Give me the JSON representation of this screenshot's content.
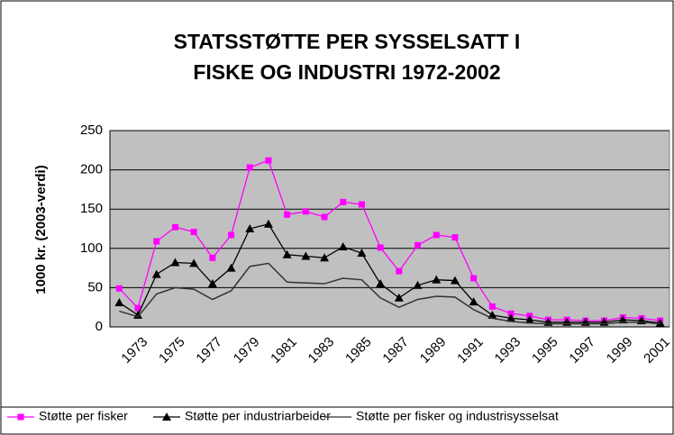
{
  "chart_data": {
    "type": "line",
    "title": [
      "STATSSTØTTE PER SYSSELSATT I",
      "FISKE OG INDUSTRI 1972-2002"
    ],
    "y_label": "1000 kr. (2003-verdi)",
    "categories": [
      null,
      "1973",
      null,
      "1975",
      null,
      "1977",
      null,
      "1979",
      null,
      "1981",
      null,
      "1983",
      null,
      "1985",
      null,
      "1987",
      null,
      "1989",
      null,
      "1991",
      null,
      "1993",
      null,
      "1995",
      null,
      "1997",
      null,
      "1999",
      null,
      "2001"
    ],
    "series": [
      {
        "name": "Støtte per fisker",
        "color": "#ff00ff",
        "marker": "square",
        "values": [
          49,
          24,
          109,
          127,
          121,
          88,
          117,
          203,
          212,
          143,
          147,
          140,
          159,
          156,
          101,
          71,
          104,
          117,
          114,
          62,
          26,
          17,
          14,
          9,
          9,
          8,
          8,
          12,
          11,
          8
        ]
      },
      {
        "name": "Støtte per industriarbeider",
        "color": "#000000",
        "marker": "triangle",
        "values": [
          31,
          15,
          67,
          82,
          81,
          55,
          75,
          125,
          131,
          92,
          90,
          88,
          102,
          94,
          55,
          37,
          53,
          60,
          59,
          32,
          15,
          11,
          9,
          6,
          6,
          6,
          6,
          9,
          8,
          5
        ]
      },
      {
        "name": "Støtte per fisker og industrisysselsat",
        "color": "#333333",
        "marker": "none",
        "values": [
          20,
          13,
          42,
          50,
          48,
          35,
          46,
          77,
          81,
          57,
          56,
          55,
          62,
          60,
          37,
          25,
          35,
          39,
          38,
          22,
          11,
          7,
          5,
          4,
          4,
          4,
          4,
          6,
          6,
          4
        ]
      }
    ],
    "ylim": [
      0,
      250
    ],
    "yticks": [
      0,
      50,
      100,
      150,
      200,
      250
    ],
    "grid": true,
    "plot_background": "#c0c0c0",
    "legend": "bottom"
  }
}
